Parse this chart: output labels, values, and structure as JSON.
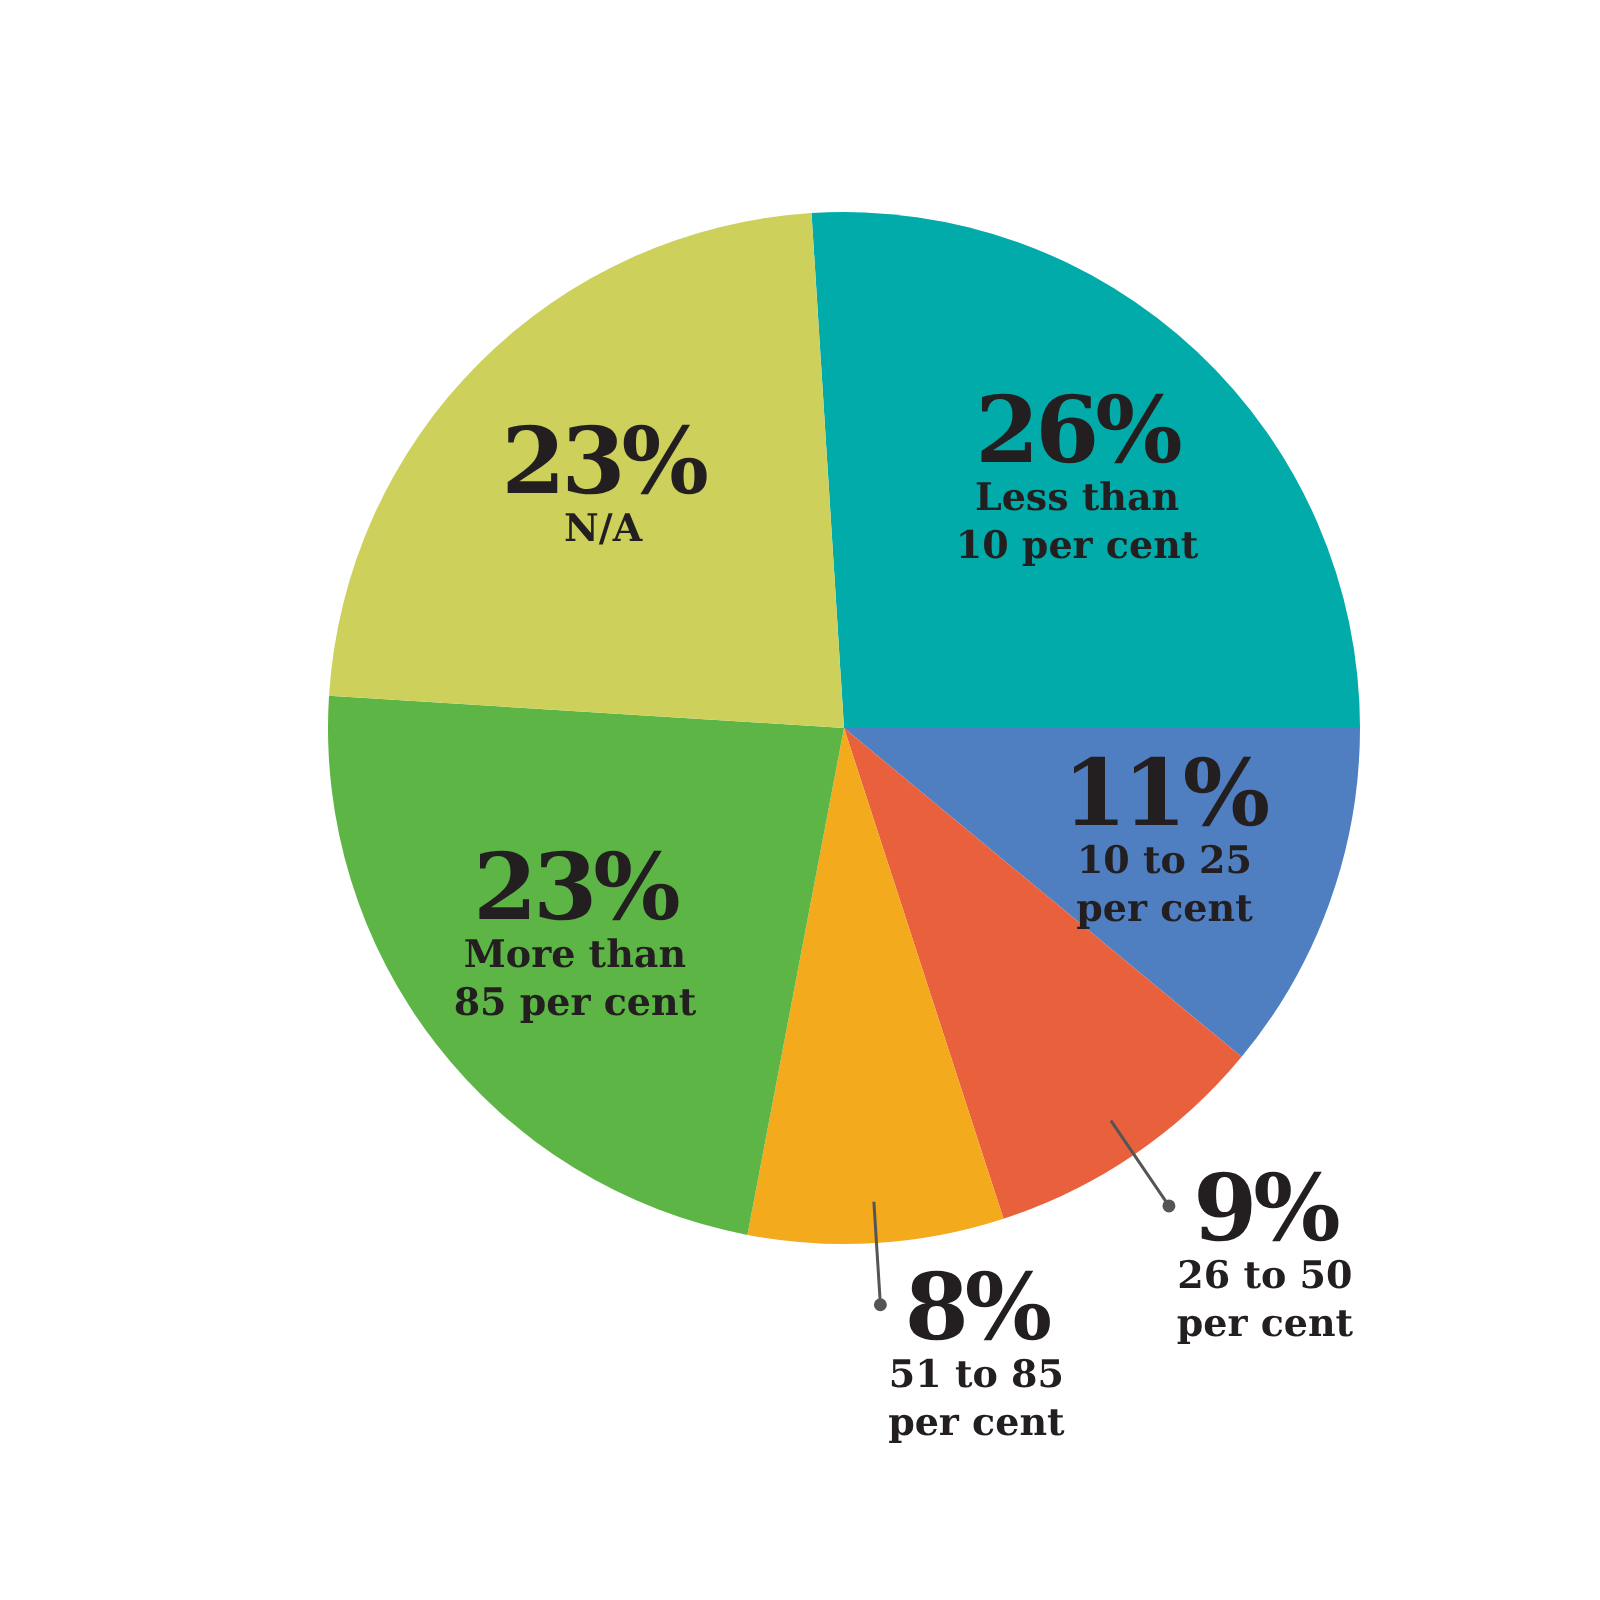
{
  "chart_data": {
    "type": "pie",
    "categories": [
      "Less than 10 per cent",
      "10 to 25 per cent",
      "26 to 50 per cent",
      "51 to 85 per cent",
      "More than 85 per cent",
      "N/A"
    ],
    "values": [
      26,
      11,
      9,
      8,
      23,
      23
    ],
    "value_labels": [
      "26%",
      "11%",
      "9%",
      "8%",
      "23%",
      "23%"
    ],
    "colors": [
      "#00aba9",
      "#4f7fc1",
      "#e8603c",
      "#f3aa1c",
      "#5db545",
      "#cdd15c"
    ]
  }
}
